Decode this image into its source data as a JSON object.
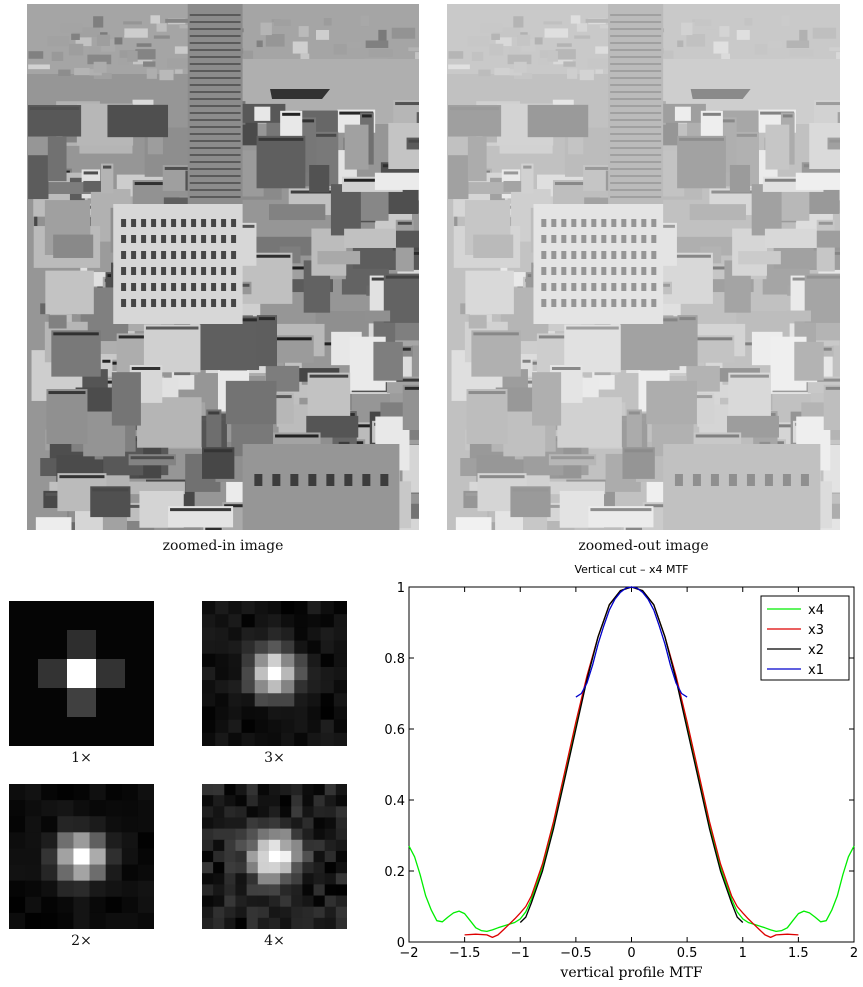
{
  "figure": {
    "photos": [
      {
        "caption": "zoomed-in image",
        "tone": "sharp"
      },
      {
        "caption": "zoomed-out image",
        "tone": "soft"
      }
    ],
    "psf_kernels": [
      {
        "label": "1×",
        "grid": 5
      },
      {
        "label": "3×",
        "grid": 11
      },
      {
        "label": "2×",
        "grid": 9
      },
      {
        "label": "4×",
        "grid": 13
      }
    ]
  },
  "chart_data": {
    "type": "line",
    "title": "Vertical cut – x4 MTF",
    "xlabel": "vertical profile MTF",
    "ylabel": "",
    "xlim": [
      -2,
      2
    ],
    "ylim": [
      0,
      1
    ],
    "xticks": [
      "−2",
      "−1.5",
      "−1",
      "−0.5",
      "0",
      "0.5",
      "1",
      "1.5",
      "2"
    ],
    "yticks": [
      "0",
      "0.2",
      "0.4",
      "0.6",
      "0.8",
      "1"
    ],
    "legend_position": "top-right",
    "series": [
      {
        "name": "x4",
        "color": "#00ee00",
        "x": [
          -2,
          -1.95,
          -1.9,
          -1.85,
          -1.8,
          -1.75,
          -1.7,
          -1.65,
          -1.6,
          -1.55,
          -1.5,
          -1.45,
          -1.4,
          -1.35,
          -1.3,
          -1.25,
          -1.2,
          -1.15,
          -1.1,
          -1.05,
          -1.0,
          -0.95,
          -0.9,
          -0.8,
          -0.7,
          -0.6,
          -0.5,
          -0.4,
          -0.3,
          -0.2,
          -0.1,
          0,
          0.1,
          0.2,
          0.3,
          0.4,
          0.5,
          0.6,
          0.7,
          0.8,
          0.9,
          0.95,
          1.0,
          1.05,
          1.1,
          1.15,
          1.2,
          1.25,
          1.3,
          1.35,
          1.4,
          1.45,
          1.5,
          1.55,
          1.6,
          1.65,
          1.7,
          1.75,
          1.8,
          1.85,
          1.9,
          1.95,
          2
        ],
        "y": [
          0.27,
          0.24,
          0.19,
          0.13,
          0.09,
          0.06,
          0.057,
          0.07,
          0.082,
          0.087,
          0.08,
          0.06,
          0.04,
          0.032,
          0.03,
          0.034,
          0.04,
          0.045,
          0.05,
          0.055,
          0.065,
          0.085,
          0.12,
          0.21,
          0.33,
          0.47,
          0.61,
          0.74,
          0.86,
          0.95,
          0.99,
          1.0,
          0.99,
          0.95,
          0.86,
          0.74,
          0.61,
          0.47,
          0.33,
          0.21,
          0.12,
          0.085,
          0.065,
          0.055,
          0.05,
          0.045,
          0.04,
          0.034,
          0.03,
          0.032,
          0.04,
          0.06,
          0.08,
          0.087,
          0.082,
          0.07,
          0.057,
          0.06,
          0.09,
          0.13,
          0.19,
          0.24,
          0.27
        ]
      },
      {
        "name": "x3",
        "color": "#dd0000",
        "x": [
          -1.5,
          -1.4,
          -1.3,
          -1.25,
          -1.2,
          -1.15,
          -1.1,
          -1.05,
          -1.0,
          -0.95,
          -0.9,
          -0.8,
          -0.7,
          -0.6,
          -0.5,
          -0.4,
          -0.3,
          -0.2,
          -0.1,
          0,
          0.1,
          0.2,
          0.3,
          0.4,
          0.5,
          0.6,
          0.7,
          0.8,
          0.9,
          0.95,
          1.0,
          1.05,
          1.1,
          1.15,
          1.2,
          1.25,
          1.3,
          1.4,
          1.5
        ],
        "y": [
          0.02,
          0.022,
          0.02,
          0.013,
          0.02,
          0.035,
          0.05,
          0.065,
          0.082,
          0.1,
          0.13,
          0.22,
          0.34,
          0.48,
          0.62,
          0.75,
          0.86,
          0.95,
          0.99,
          1.0,
          0.99,
          0.95,
          0.86,
          0.75,
          0.62,
          0.48,
          0.34,
          0.22,
          0.13,
          0.1,
          0.082,
          0.065,
          0.05,
          0.035,
          0.02,
          0.013,
          0.02,
          0.022,
          0.02
        ]
      },
      {
        "name": "x2",
        "color": "#000000",
        "x": [
          -1.0,
          -0.95,
          -0.9,
          -0.8,
          -0.7,
          -0.6,
          -0.5,
          -0.4,
          -0.3,
          -0.2,
          -0.1,
          0,
          0.1,
          0.2,
          0.3,
          0.4,
          0.5,
          0.6,
          0.7,
          0.8,
          0.9,
          0.95,
          1.0
        ],
        "y": [
          0.055,
          0.07,
          0.11,
          0.2,
          0.32,
          0.46,
          0.6,
          0.74,
          0.86,
          0.95,
          0.99,
          1.0,
          0.99,
          0.95,
          0.86,
          0.74,
          0.6,
          0.46,
          0.32,
          0.2,
          0.11,
          0.07,
          0.055
        ]
      },
      {
        "name": "x1",
        "color": "#0000cc",
        "x": [
          -0.5,
          -0.45,
          -0.4,
          -0.35,
          -0.3,
          -0.25,
          -0.2,
          -0.15,
          -0.1,
          -0.05,
          0,
          0.05,
          0.1,
          0.15,
          0.2,
          0.25,
          0.3,
          0.35,
          0.4,
          0.45,
          0.5
        ],
        "y": [
          0.69,
          0.7,
          0.73,
          0.78,
          0.84,
          0.89,
          0.935,
          0.965,
          0.985,
          0.997,
          1.0,
          0.997,
          0.985,
          0.965,
          0.935,
          0.89,
          0.84,
          0.78,
          0.73,
          0.7,
          0.69
        ]
      }
    ]
  }
}
